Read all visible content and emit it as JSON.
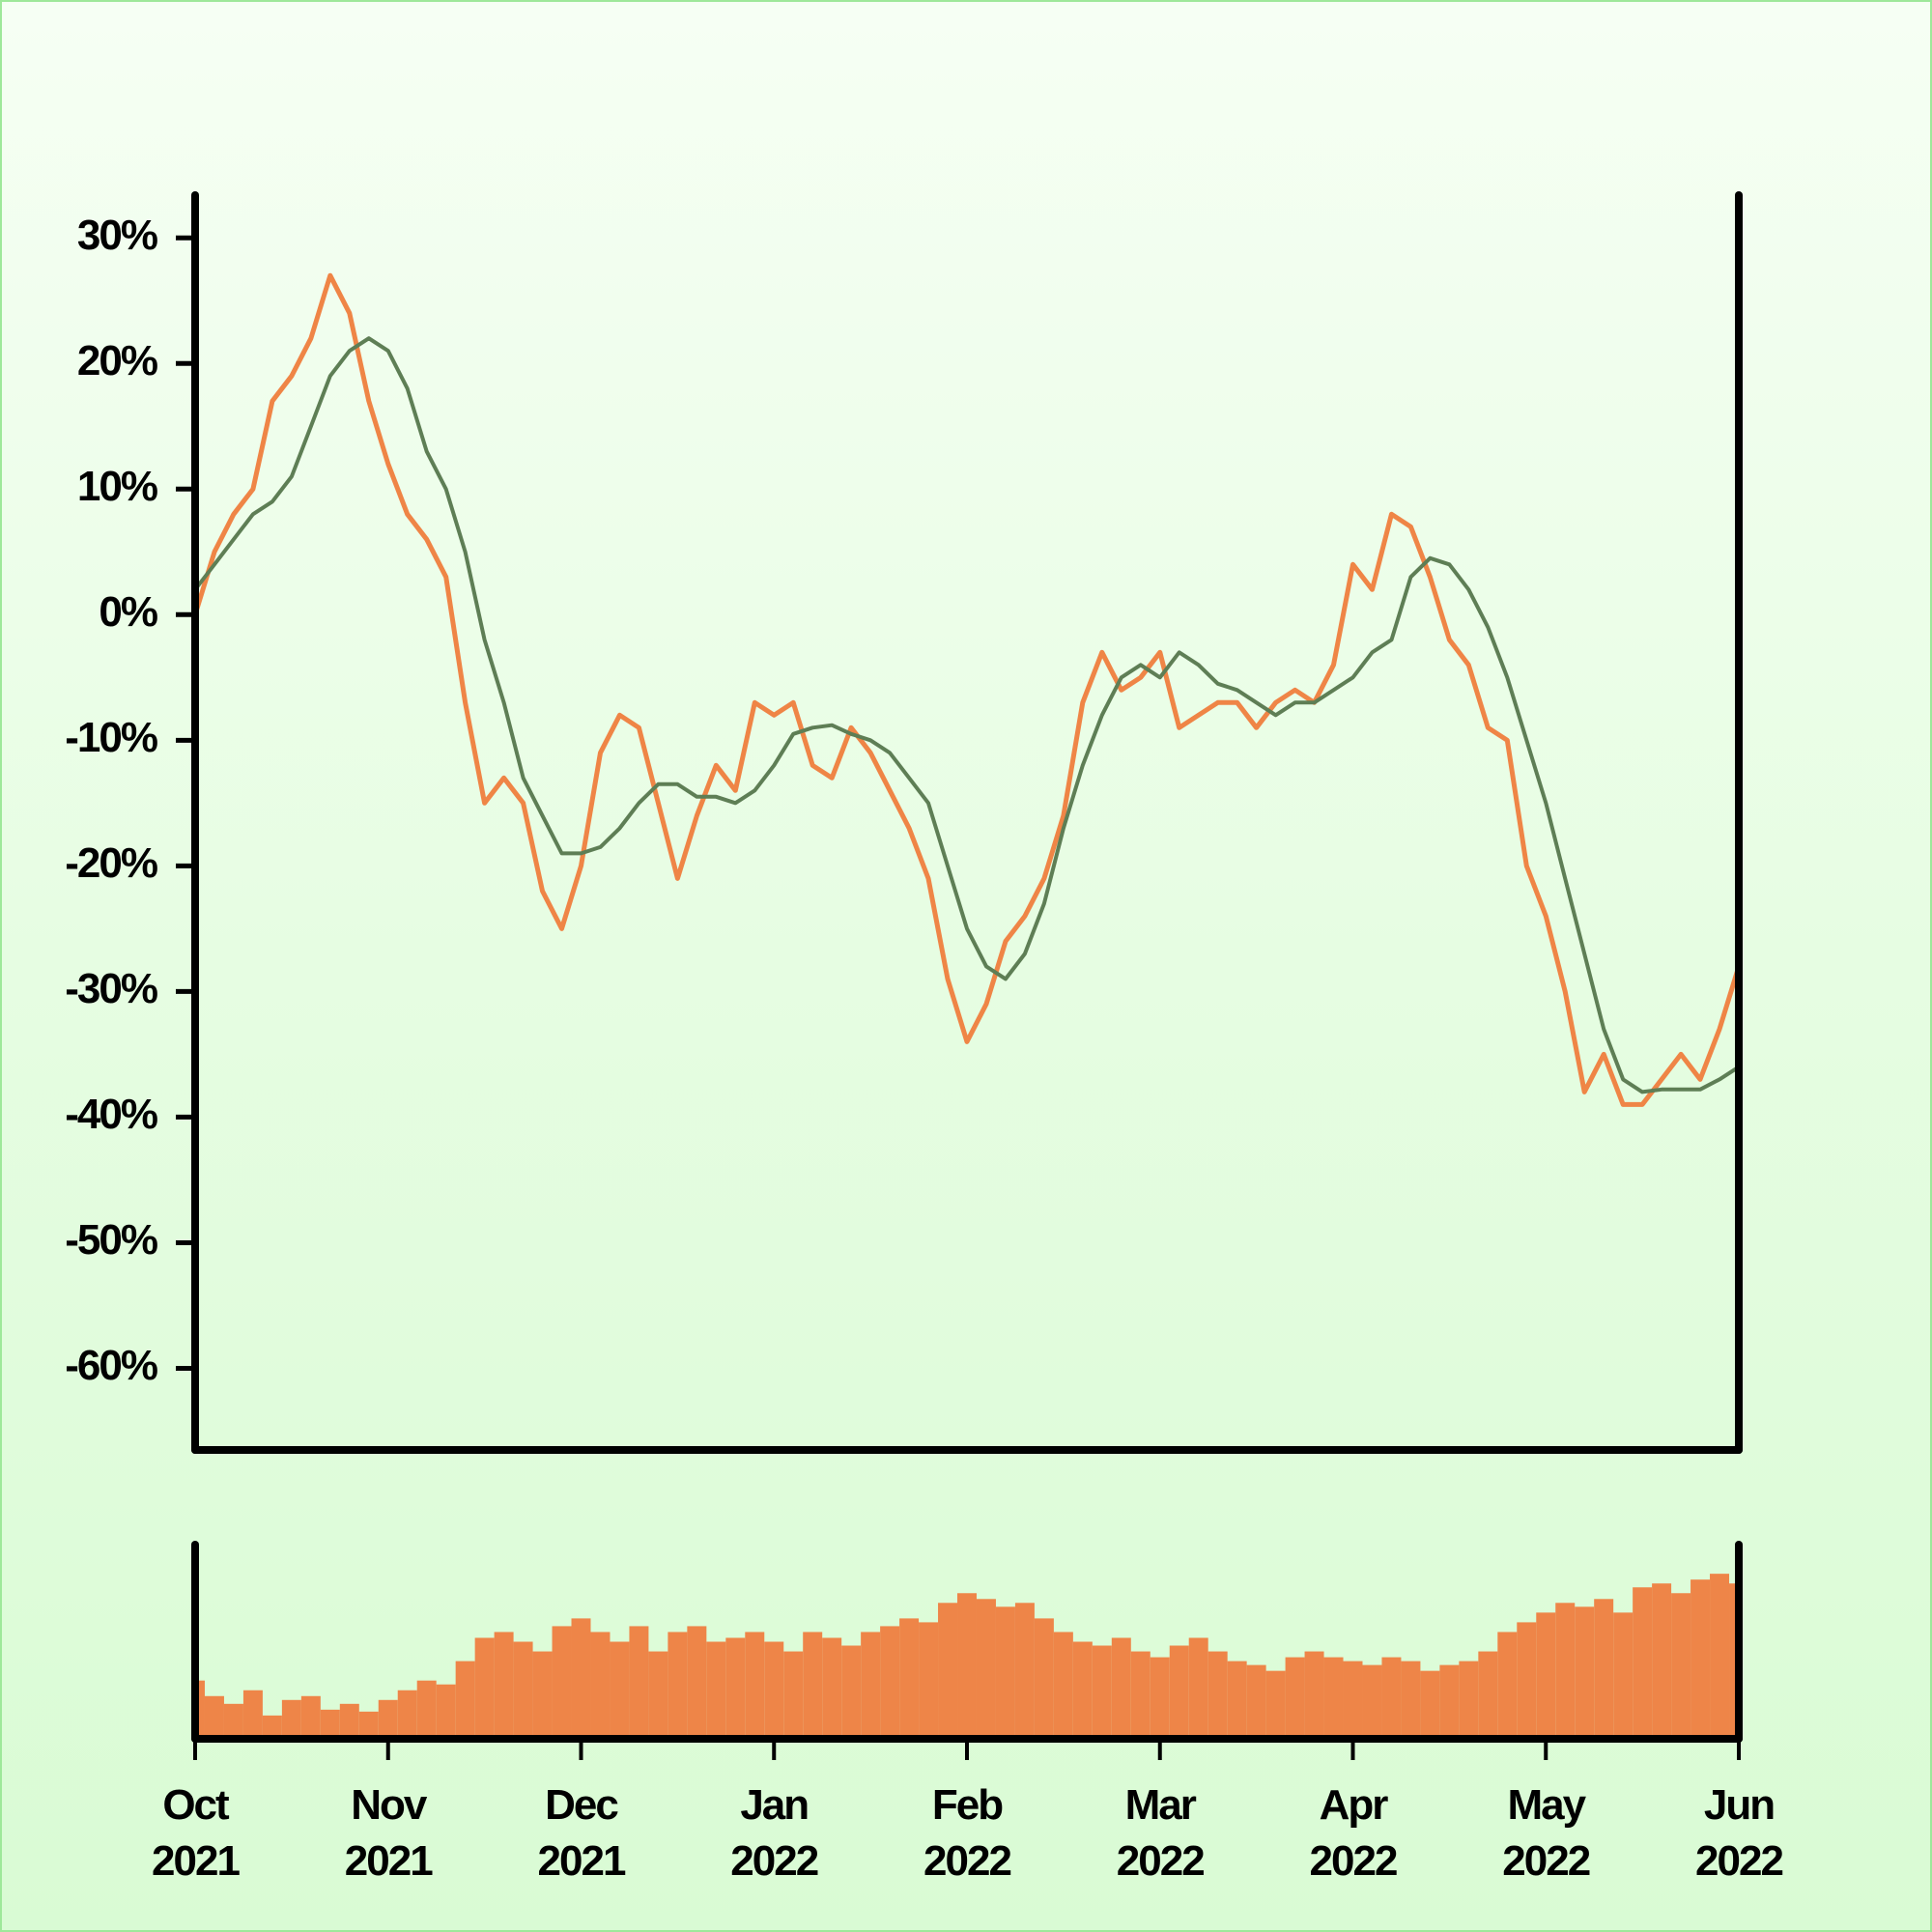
{
  "chart_data": {
    "type": "line",
    "categories": [
      "Oct 2021",
      null,
      null,
      null,
      null,
      null,
      null,
      null,
      null,
      null,
      "Nov 2021",
      null,
      null,
      null,
      null,
      null,
      null,
      null,
      null,
      null,
      "Dec 2021",
      null,
      null,
      null,
      null,
      null,
      null,
      null,
      null,
      null,
      "Jan 2022",
      null,
      null,
      null,
      null,
      null,
      null,
      null,
      null,
      null,
      "Feb 2022",
      null,
      null,
      null,
      null,
      null,
      null,
      null,
      null,
      null,
      "Mar 2022",
      null,
      null,
      null,
      null,
      null,
      null,
      null,
      null,
      null,
      "Apr 2022",
      null,
      null,
      null,
      null,
      null,
      null,
      null,
      null,
      null,
      "May 2022",
      null,
      null,
      null,
      null,
      null,
      null,
      null,
      null,
      null,
      "Jun 2022"
    ],
    "ylim": [
      -66.5,
      33.4
    ],
    "yticks": [
      {
        "value": 30,
        "label": "30%"
      },
      {
        "value": 20,
        "label": "20%"
      },
      {
        "value": 10,
        "label": "10%"
      },
      {
        "value": 0,
        "label": "0%"
      },
      {
        "value": -10,
        "label": "-10%"
      },
      {
        "value": -20,
        "label": "-20%"
      },
      {
        "value": -30,
        "label": "-30%"
      },
      {
        "value": -40,
        "label": "-40%"
      },
      {
        "value": -50,
        "label": "-50%"
      },
      {
        "value": -60,
        "label": "-60%"
      }
    ],
    "y2lim": [
      0,
      100
    ],
    "series": [
      {
        "color": "#ef8546",
        "values": [
          0,
          5,
          8,
          10,
          17,
          19,
          22,
          27,
          24,
          17,
          12,
          8,
          6,
          3,
          -7,
          -15,
          -13,
          -15,
          -22,
          -25,
          -20,
          -11,
          -8,
          -9,
          -15,
          -21,
          -16,
          -12,
          -14,
          -7,
          -8,
          -7,
          -12,
          -13,
          -9,
          -11,
          -14,
          -17,
          -21,
          -29,
          -34,
          -31,
          -26,
          -24,
          -21,
          -16,
          -7,
          -3,
          -6,
          -5,
          -3,
          -9,
          -8,
          -7,
          -7,
          -9,
          -7,
          -6,
          -7,
          -4,
          4,
          2,
          8,
          7,
          3,
          -2,
          -4,
          -9,
          -10,
          -20,
          -24,
          -30,
          -38,
          -35,
          -39,
          -39,
          -37,
          -35,
          -37,
          -33,
          -28
        ]
      },
      {
        "color": "#5e7e55",
        "values": [
          2,
          4,
          6,
          8,
          9,
          11,
          15,
          19,
          21,
          22,
          21,
          18,
          13,
          10,
          5,
          -2,
          -7,
          -13,
          -16,
          -19,
          -19,
          -18.5,
          -17,
          -15,
          -13.5,
          -13.5,
          -14.5,
          -14.5,
          -15,
          -14,
          -12,
          -9.5,
          -9,
          -8.8,
          -9.5,
          -10,
          -11,
          -13,
          -15,
          -20,
          -25,
          -28,
          -29,
          -27,
          -23,
          -17,
          -12,
          -8,
          -5,
          -4,
          -5,
          -3,
          -4,
          -5.5,
          -6,
          -7,
          -8,
          -7,
          -7,
          -6,
          -5,
          -3,
          -2,
          3,
          4.5,
          4,
          2,
          -1,
          -5,
          -10,
          -15,
          -21,
          -27,
          -33,
          -37,
          -38,
          -37.8,
          -37.8,
          -37.8,
          -37,
          -36
        ]
      },
      {
        "type": "bar",
        "axis": "y2",
        "color": "#ee8548",
        "values": [
          30,
          22,
          18,
          25,
          12,
          20,
          22,
          15,
          18,
          14,
          20,
          25,
          30,
          28,
          40,
          52,
          55,
          50,
          45,
          58,
          62,
          55,
          50,
          58,
          45,
          55,
          58,
          50,
          52,
          55,
          50,
          45,
          55,
          52,
          48,
          55,
          58,
          62,
          60,
          70,
          75,
          72,
          68,
          70,
          62,
          55,
          50,
          48,
          52,
          45,
          42,
          48,
          52,
          45,
          40,
          38,
          35,
          42,
          45,
          42,
          40,
          38,
          42,
          40,
          35,
          38,
          40,
          45,
          55,
          60,
          65,
          70,
          68,
          72,
          65,
          78,
          80,
          75,
          82,
          85,
          80
        ]
      }
    ]
  }
}
